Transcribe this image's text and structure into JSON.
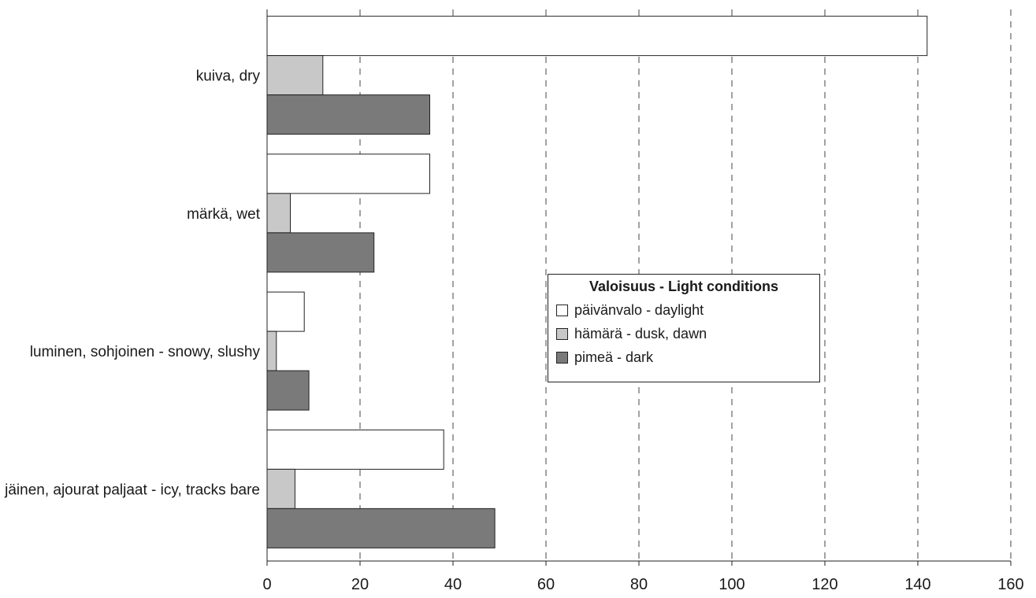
{
  "chart_data": {
    "type": "bar",
    "orientation": "horizontal",
    "categories": [
      "kuiva, dry",
      "märkä, wet",
      "luminen, sohjoinen - snowy, slushy",
      "jäinen, ajourat paljaat - icy, tracks bare"
    ],
    "series": [
      {
        "name": "päivänvalo - daylight",
        "values": [
          142,
          35,
          8,
          38
        ],
        "color": "#ffffff"
      },
      {
        "name": "hämärä - dusk, dawn",
        "values": [
          12,
          5,
          2,
          6
        ],
        "color": "#c8c8c8"
      },
      {
        "name": "pimeä - dark",
        "values": [
          35,
          23,
          9,
          49
        ],
        "color": "#7a7a7a"
      }
    ],
    "x_ticks": [
      "0",
      "20",
      "40",
      "60",
      "80",
      "100",
      "120",
      "140",
      "160"
    ],
    "xlim": [
      0,
      160
    ],
    "grid": "vertical dashed",
    "legend_title": "Valoisuus - Light conditions",
    "legend_position": "center-right"
  }
}
